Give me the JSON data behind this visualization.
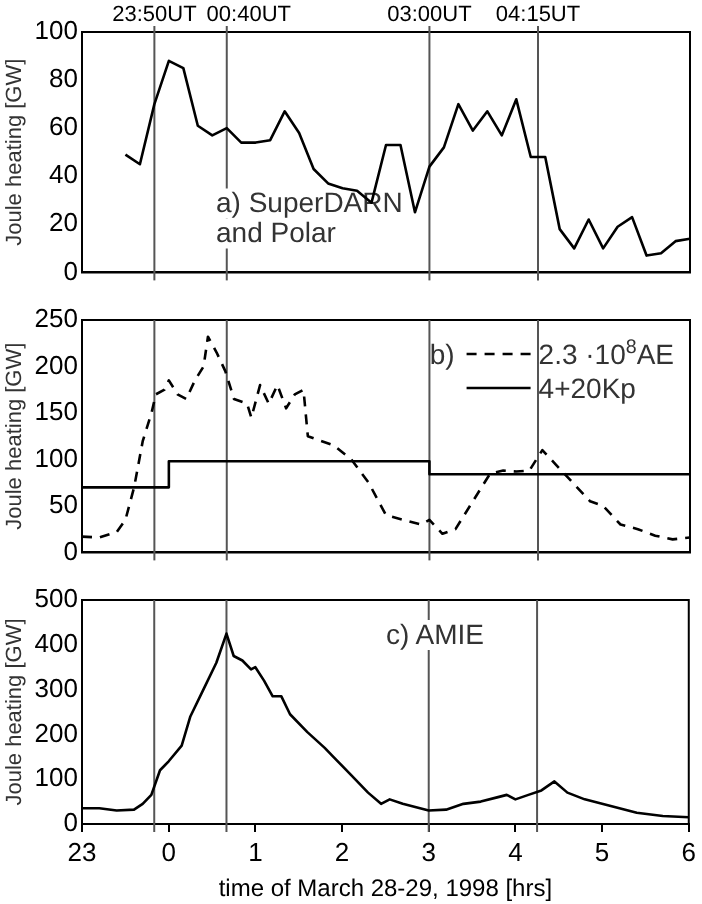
{
  "chart_data": [
    {
      "type": "line",
      "ylabel": "Joule heating [GW]",
      "annotations": [
        "a) SuperDARN and Polar"
      ],
      "xlim": [
        "1998-03-28T23:00",
        "1998-03-29T06:00"
      ],
      "ylim": [
        0,
        100
      ],
      "yticks": [
        0,
        20,
        40,
        60,
        80,
        100
      ],
      "tick_labels": "y",
      "series": [
        {
          "color": "#000000",
          "x": [
            "1998-03-28T23:30",
            "1998-03-28T23:40",
            "1998-03-28T23:50",
            "1998-03-29T00:00",
            "1998-03-29T00:10",
            "1998-03-29T00:20",
            "1998-03-29T00:30",
            "1998-03-29T00:40",
            "1998-03-29T00:50",
            "1998-03-29T01:00",
            "1998-03-29T01:10",
            "1998-03-29T01:20",
            "1998-03-29T01:30",
            "1998-03-29T01:40",
            "1998-03-29T01:50",
            "1998-03-29T02:00",
            "1998-03-29T02:10",
            "1998-03-29T02:20",
            "1998-03-29T02:30",
            "1998-03-29T02:40",
            "1998-03-29T02:50",
            "1998-03-29T03:00",
            "1998-03-29T03:10",
            "1998-03-29T03:20",
            "1998-03-29T03:30",
            "1998-03-29T03:40",
            "1998-03-29T03:50",
            "1998-03-29T04:00",
            "1998-03-29T04:10",
            "1998-03-29T04:20",
            "1998-03-29T04:30",
            "1998-03-29T04:40",
            "1998-03-29T04:50",
            "1998-03-29T05:00",
            "1998-03-29T05:10",
            "1998-03-29T05:20",
            "1998-03-29T05:30",
            "1998-03-29T05:40",
            "1998-03-29T05:50",
            "1998-03-29T06:00"
          ],
          "values": [
            49,
            45,
            70,
            88,
            85,
            61,
            57,
            60,
            54,
            54,
            55,
            67,
            58,
            43,
            37,
            35,
            34,
            29,
            53,
            53,
            25,
            44,
            52,
            70,
            59,
            67,
            57,
            72,
            48,
            48,
            18,
            10,
            22,
            10,
            19,
            23,
            7,
            8,
            13,
            14
          ]
        }
      ],
      "ref_lines": [
        {
          "axis": "x",
          "value": "1998-03-28T23:50",
          "label": "23:50UT"
        },
        {
          "axis": "x",
          "value": "1998-03-29T00:40",
          "label": "00:40UT"
        },
        {
          "axis": "x",
          "value": "1998-03-29T03:00",
          "label": "03:00UT"
        },
        {
          "axis": "x",
          "value": "1998-03-29T04:15",
          "label": "04:15UT"
        }
      ]
    },
    {
      "type": "line",
      "ylabel": "Joule heating [GW]",
      "legend": "top right",
      "legend_title": "b)",
      "xlim": [
        "1998-03-28T23:00",
        "1998-03-29T06:00"
      ],
      "ylim": [
        0,
        250
      ],
      "yticks": [
        0,
        50,
        100,
        150,
        200,
        250
      ],
      "tick_labels": "y",
      "series": [
        {
          "name": "2.3 ·10$^{8}$AE",
          "color": "#000000",
          "line_style": "dashed",
          "x": [
            "1998-03-28T23:00",
            "1998-03-28T23:12",
            "1998-03-28T23:24",
            "1998-03-28T23:30",
            "1998-03-28T23:36",
            "1998-03-28T23:42",
            "1998-03-28T23:48",
            "1998-03-28T23:51",
            "1998-03-28T23:57",
            "1998-03-29T00:00",
            "1998-03-29T00:06",
            "1998-03-29T00:12",
            "1998-03-29T00:18",
            "1998-03-29T00:24",
            "1998-03-29T00:27",
            "1998-03-29T00:33",
            "1998-03-29T00:39",
            "1998-03-29T00:45",
            "1998-03-29T00:54",
            "1998-03-29T00:57",
            "1998-03-29T01:03",
            "1998-03-29T01:09",
            "1998-03-29T01:15",
            "1998-03-29T01:21",
            "1998-03-29T01:27",
            "1998-03-29T01:33",
            "1998-03-29T01:36",
            "1998-03-29T01:45",
            "1998-03-29T01:54",
            "1998-03-29T02:06",
            "1998-03-29T02:18",
            "1998-03-29T02:30",
            "1998-03-29T02:42",
            "1998-03-29T02:54",
            "1998-03-29T03:00",
            "1998-03-29T03:09",
            "1998-03-29T03:18",
            "1998-03-29T03:30",
            "1998-03-29T03:42",
            "1998-03-29T03:51",
            "1998-03-29T04:00",
            "1998-03-29T04:09",
            "1998-03-29T04:18",
            "1998-03-29T04:27",
            "1998-03-29T04:39",
            "1998-03-29T04:51",
            "1998-03-29T05:00",
            "1998-03-29T05:12",
            "1998-03-29T05:24",
            "1998-03-29T05:36",
            "1998-03-29T05:48",
            "1998-03-29T06:00"
          ],
          "values": [
            17,
            16,
            22,
            35,
            70,
            120,
            150,
            170,
            175,
            185,
            170,
            165,
            185,
            200,
            232,
            215,
            195,
            165,
            160,
            145,
            180,
            160,
            180,
            155,
            170,
            175,
            125,
            120,
            115,
            100,
            75,
            40,
            35,
            30,
            35,
            20,
            25,
            55,
            85,
            88,
            87,
            88,
            110,
            95,
            75,
            55,
            50,
            30,
            25,
            18,
            14,
            16
          ]
        },
        {
          "name": "4+20Kp",
          "type": "step",
          "color": "#000000",
          "line_style": "solid",
          "x": [
            "1998-03-28T23:00",
            "1998-03-29T00:00",
            "1998-03-29T03:00",
            "1998-03-29T06:00"
          ],
          "values": [
            70,
            98,
            84,
            84
          ]
        }
      ],
      "ref_lines": [
        {
          "axis": "x",
          "value": "1998-03-28T23:50"
        },
        {
          "axis": "x",
          "value": "1998-03-29T00:40"
        },
        {
          "axis": "x",
          "value": "1998-03-29T03:00"
        },
        {
          "axis": "x",
          "value": "1998-03-29T04:15"
        }
      ]
    },
    {
      "type": "line",
      "ylabel": "Joule heating [GW]",
      "xlabel": "time of March 28-29, 1998 [hrs]",
      "annotations": [
        "c) AMIE"
      ],
      "xlim": [
        "1998-03-28T23:00",
        "1998-03-29T06:00"
      ],
      "xticks": [
        {
          "value": "1998-03-28T23:00",
          "label": "23"
        },
        {
          "value": "1998-03-29T00:00",
          "label": "0"
        },
        {
          "value": "1998-03-29T01:00",
          "label": "1"
        },
        {
          "value": "1998-03-29T02:00",
          "label": "2"
        },
        {
          "value": "1998-03-29T03:00",
          "label": "3"
        },
        {
          "value": "1998-03-29T04:00",
          "label": "4"
        },
        {
          "value": "1998-03-29T05:00",
          "label": "5"
        },
        {
          "value": "1998-03-29T06:00",
          "label": "6"
        }
      ],
      "ylim": [
        0,
        500
      ],
      "yticks": [
        0,
        100,
        200,
        300,
        400,
        500
      ],
      "series": [
        {
          "color": "#000000",
          "x": [
            "1998-03-28T23:00",
            "1998-03-28T23:12",
            "1998-03-28T23:24",
            "1998-03-28T23:36",
            "1998-03-28T23:42",
            "1998-03-28T23:48",
            "1998-03-28T23:54",
            "1998-03-29T00:00",
            "1998-03-29T00:09",
            "1998-03-29T00:15",
            "1998-03-29T00:24",
            "1998-03-29T00:33",
            "1998-03-29T00:40",
            "1998-03-29T00:45",
            "1998-03-29T00:51",
            "1998-03-29T00:57",
            "1998-03-29T01:00",
            "1998-03-29T01:06",
            "1998-03-29T01:12",
            "1998-03-29T01:18",
            "1998-03-29T01:24",
            "1998-03-29T01:36",
            "1998-03-29T01:48",
            "1998-03-29T01:54",
            "1998-03-29T02:06",
            "1998-03-29T02:18",
            "1998-03-29T02:27",
            "1998-03-29T02:33",
            "1998-03-29T02:42",
            "1998-03-29T02:54",
            "1998-03-29T03:00",
            "1998-03-29T03:12",
            "1998-03-29T03:24",
            "1998-03-29T03:36",
            "1998-03-29T03:48",
            "1998-03-29T03:54",
            "1998-03-29T04:00",
            "1998-03-29T04:09",
            "1998-03-29T04:18",
            "1998-03-29T04:27",
            "1998-03-29T04:36",
            "1998-03-29T04:48",
            "1998-03-29T05:00",
            "1998-03-29T05:12",
            "1998-03-29T05:24",
            "1998-03-29T05:42",
            "1998-03-29T06:00"
          ],
          "values": [
            35,
            35,
            30,
            32,
            45,
            65,
            120,
            140,
            175,
            240,
            300,
            360,
            425,
            375,
            365,
            345,
            350,
            320,
            285,
            285,
            245,
            205,
            170,
            150,
            110,
            70,
            45,
            55,
            45,
            35,
            30,
            32,
            45,
            50,
            60,
            65,
            55,
            65,
            75,
            95,
            70,
            55,
            45,
            35,
            25,
            18,
            15
          ]
        }
      ],
      "ref_lines": [
        {
          "axis": "x",
          "value": "1998-03-28T23:50"
        },
        {
          "axis": "x",
          "value": "1998-03-29T00:40"
        },
        {
          "axis": "x",
          "value": "1998-03-29T03:00"
        },
        {
          "axis": "x",
          "value": "1998-03-29T04:15"
        }
      ]
    }
  ]
}
